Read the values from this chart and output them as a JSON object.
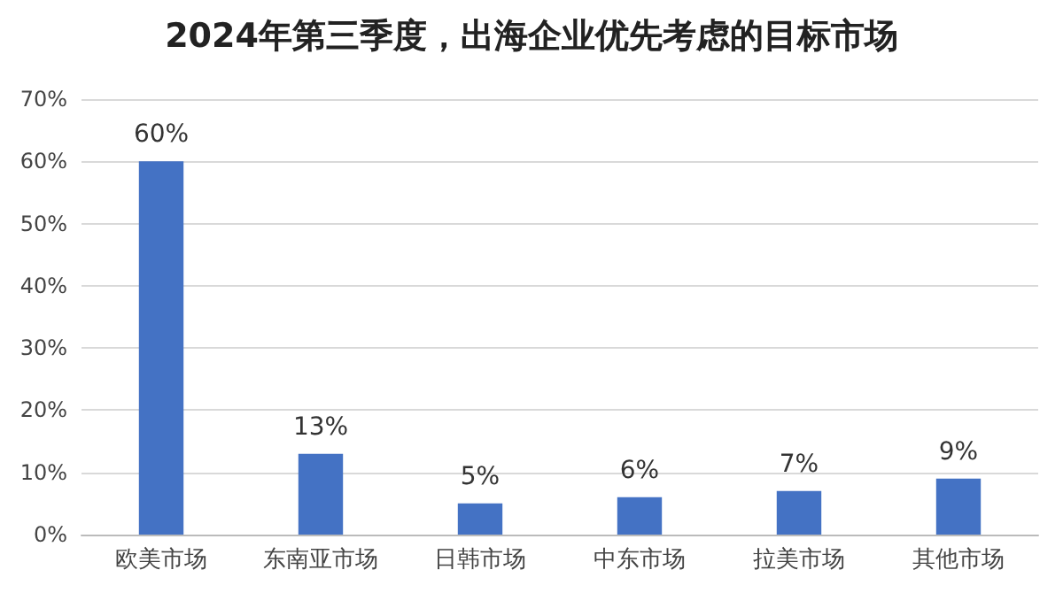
{
  "chart_data": {
    "type": "bar",
    "title": "2024年第三季度，出海企业优先考虑的目标市场",
    "categories": [
      "欧美市场",
      "东南亚市场",
      "日韩市场",
      "中东市场",
      "拉美市场",
      "其他市场"
    ],
    "values": [
      60,
      13,
      5,
      6,
      7,
      9
    ],
    "value_labels": [
      "60%",
      "13%",
      "5%",
      "6%",
      "7%",
      "9%"
    ],
    "color": "#4472c4",
    "ylim": [
      0,
      70
    ],
    "yticks": [
      {
        "value": 0,
        "label": "0%"
      },
      {
        "value": 10,
        "label": "10%"
      },
      {
        "value": 20,
        "label": "20%"
      },
      {
        "value": 30,
        "label": "30%"
      },
      {
        "value": 40,
        "label": "40%"
      },
      {
        "value": 50,
        "label": "50%"
      },
      {
        "value": 60,
        "label": "60%"
      },
      {
        "value": 70,
        "label": "70%"
      }
    ],
    "grid": true
  }
}
